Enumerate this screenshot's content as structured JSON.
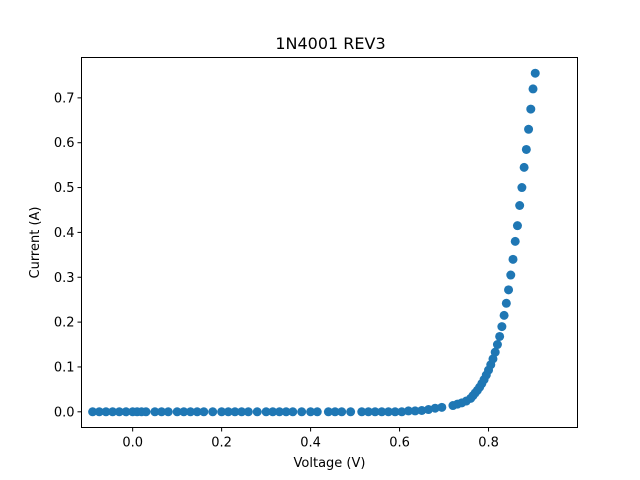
{
  "chart_data": {
    "type": "scatter",
    "title": "1N4001 REV3",
    "xlabel": "Voltage (V)",
    "ylabel": "Current (A)",
    "xlim": [
      -0.115,
      1.0
    ],
    "ylim": [
      -0.035,
      0.79
    ],
    "xticks": [
      0.0,
      0.2,
      0.4,
      0.6,
      0.8
    ],
    "xtick_labels": [
      "0.0",
      "0.2",
      "0.4",
      "0.6",
      "0.8"
    ],
    "yticks": [
      0.0,
      0.1,
      0.2,
      0.3,
      0.4,
      0.5,
      0.6,
      0.7
    ],
    "ytick_labels": [
      "0.0",
      "0.1",
      "0.2",
      "0.3",
      "0.4",
      "0.5",
      "0.6",
      "0.7"
    ],
    "grid": false,
    "legend": "none",
    "marker_color": "#1f77b4",
    "series": [
      {
        "points": [
          [
            -0.09,
            0.0
          ],
          [
            -0.075,
            0.0
          ],
          [
            -0.06,
            0.0
          ],
          [
            -0.045,
            0.0
          ],
          [
            -0.03,
            0.0
          ],
          [
            -0.015,
            0.0
          ],
          [
            0.0,
            0.0
          ],
          [
            0.01,
            0.0
          ],
          [
            0.02,
            0.0
          ],
          [
            0.03,
            0.0
          ],
          [
            0.05,
            0.0
          ],
          [
            0.065,
            0.0
          ],
          [
            0.08,
            0.0
          ],
          [
            0.1,
            0.0
          ],
          [
            0.115,
            0.0
          ],
          [
            0.13,
            0.0
          ],
          [
            0.145,
            0.0
          ],
          [
            0.16,
            0.0
          ],
          [
            0.18,
            0.0
          ],
          [
            0.2,
            0.0
          ],
          [
            0.215,
            0.0
          ],
          [
            0.23,
            0.0
          ],
          [
            0.245,
            0.0
          ],
          [
            0.26,
            0.0
          ],
          [
            0.28,
            0.0
          ],
          [
            0.3,
            0.0
          ],
          [
            0.315,
            0.0
          ],
          [
            0.33,
            0.0
          ],
          [
            0.345,
            0.0
          ],
          [
            0.36,
            0.0
          ],
          [
            0.38,
            0.0
          ],
          [
            0.4,
            0.0
          ],
          [
            0.415,
            0.0
          ],
          [
            0.44,
            0.0
          ],
          [
            0.455,
            0.0
          ],
          [
            0.47,
            0.0
          ],
          [
            0.49,
            0.0
          ],
          [
            0.515,
            0.0
          ],
          [
            0.53,
            0.0
          ],
          [
            0.545,
            0.0
          ],
          [
            0.56,
            0.0
          ],
          [
            0.575,
            0.0
          ],
          [
            0.59,
            0.0
          ],
          [
            0.605,
            0.0
          ],
          [
            0.62,
            0.002
          ],
          [
            0.635,
            0.002
          ],
          [
            0.65,
            0.003
          ],
          [
            0.665,
            0.005
          ],
          [
            0.68,
            0.008
          ],
          [
            0.695,
            0.01
          ],
          [
            0.72,
            0.014
          ],
          [
            0.73,
            0.017
          ],
          [
            0.74,
            0.02
          ],
          [
            0.75,
            0.024
          ],
          [
            0.76,
            0.03
          ],
          [
            0.765,
            0.036
          ],
          [
            0.77,
            0.042
          ],
          [
            0.775,
            0.048
          ],
          [
            0.78,
            0.055
          ],
          [
            0.785,
            0.063
          ],
          [
            0.79,
            0.072
          ],
          [
            0.795,
            0.082
          ],
          [
            0.8,
            0.093
          ],
          [
            0.805,
            0.105
          ],
          [
            0.81,
            0.118
          ],
          [
            0.815,
            0.133
          ],
          [
            0.82,
            0.15
          ],
          [
            0.825,
            0.168
          ],
          [
            0.83,
            0.19
          ],
          [
            0.835,
            0.215
          ],
          [
            0.84,
            0.242
          ],
          [
            0.845,
            0.272
          ],
          [
            0.85,
            0.305
          ],
          [
            0.855,
            0.34
          ],
          [
            0.86,
            0.38
          ],
          [
            0.865,
            0.415
          ],
          [
            0.87,
            0.46
          ],
          [
            0.875,
            0.5
          ],
          [
            0.88,
            0.545
          ],
          [
            0.885,
            0.585
          ],
          [
            0.89,
            0.63
          ],
          [
            0.895,
            0.675
          ],
          [
            0.9,
            0.72
          ],
          [
            0.905,
            0.755
          ]
        ]
      }
    ]
  }
}
